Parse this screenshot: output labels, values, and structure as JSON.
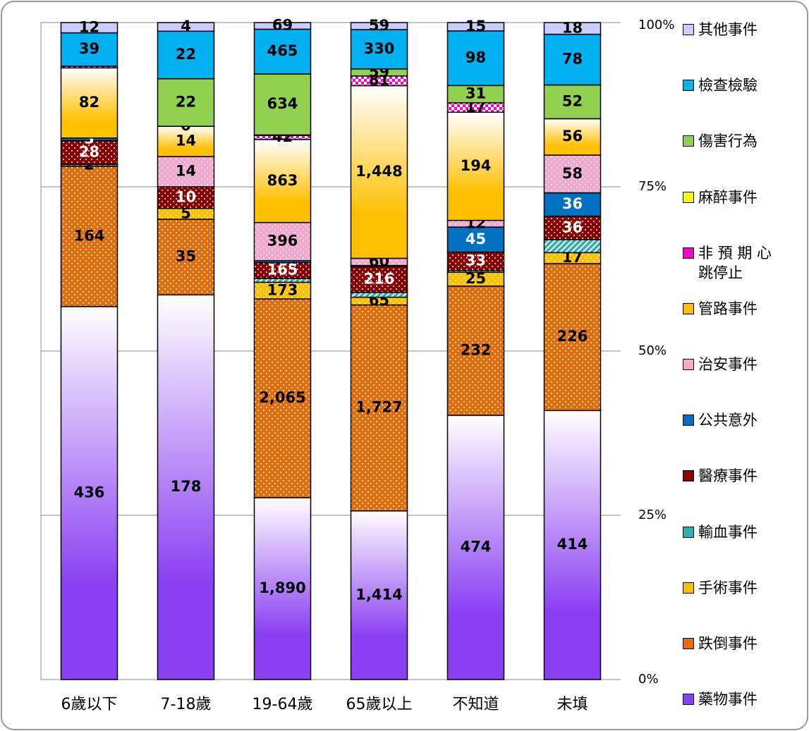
{
  "chart_data": {
    "type": "bar",
    "stack": "percent",
    "categories": [
      "6歲以下",
      "7-18歲",
      "19-64歲",
      "65歲以上",
      "不知道",
      "未填"
    ],
    "ylim": [
      0,
      100
    ],
    "yticks": [
      {
        "value": 0,
        "label": "0%"
      },
      {
        "value": 25,
        "label": "25%"
      },
      {
        "value": 50,
        "label": "50%"
      },
      {
        "value": 75,
        "label": "75%"
      },
      {
        "value": 100,
        "label": "100%"
      }
    ],
    "grid": true,
    "legend": "right",
    "series": [
      {
        "name": "藥物事件",
        "color": "#8a3ff2",
        "pattern": "gradient",
        "label_color": "#000",
        "values": [
          436,
          178,
          1890,
          1414,
          474,
          414
        ],
        "value_labels": [
          "436",
          "178",
          "1,890",
          "1,414",
          "474",
          "414"
        ]
      },
      {
        "name": "跌倒事件",
        "color": "#e46c0a",
        "pattern": "dots",
        "label_color": "#000",
        "values": [
          164,
          35,
          2065,
          1727,
          232,
          226
        ],
        "value_labels": [
          "164",
          "35",
          "2,065",
          "1,727",
          "232",
          "226"
        ]
      },
      {
        "name": "手術事件",
        "color": "#ffc000",
        "pattern": "dots",
        "label_color": "#000",
        "values": [
          null,
          5,
          173,
          65,
          25,
          17
        ],
        "value_labels": [
          null,
          "5",
          "173",
          "65",
          "25",
          "17"
        ]
      },
      {
        "name": "輸血事件",
        "color": "#31b0b0",
        "pattern": "hatch",
        "label_color": "#000",
        "values": [
          2,
          null,
          40,
          40,
          3,
          20
        ],
        "value_labels": [
          "2",
          null,
          null,
          null,
          null,
          null
        ]
      },
      {
        "name": "醫療事件",
        "color": "#8b0000",
        "pattern": "dots",
        "label_color": "#fff",
        "values": [
          28,
          10,
          165,
          216,
          33,
          36
        ],
        "value_labels": [
          "28",
          "10",
          "165",
          "216",
          "33",
          "36"
        ]
      },
      {
        "name": "公共意外",
        "color": "#0070c0",
        "label_color": "#fff",
        "values": [
          3,
          null,
          20,
          10,
          45,
          36
        ],
        "value_labels": [
          "3",
          null,
          null,
          null,
          "45",
          "36"
        ]
      },
      {
        "name": "治安事件",
        "color": "#f7a8cc",
        "pattern": "dots",
        "label_color": "#000",
        "values": [
          null,
          14,
          396,
          60,
          12,
          58
        ],
        "value_labels": [
          null,
          "14",
          "396",
          "60",
          "12",
          "58"
        ]
      },
      {
        "name": "管路事件",
        "color": "#ffc000",
        "pattern": "gradient",
        "label_color": "#000",
        "values": [
          82,
          14,
          863,
          1448,
          194,
          56
        ],
        "value_labels": [
          "82",
          "14",
          "863",
          "1,448",
          "194",
          "56"
        ]
      },
      {
        "name": "非 預 期 心跳停止",
        "color": "#ff00cc",
        "pattern": "checker",
        "label_color": "#000",
        "values": [
          2,
          null,
          42,
          81,
          17,
          null
        ],
        "value_labels": [
          null,
          null,
          "42",
          "81",
          "17",
          null
        ]
      },
      {
        "name": "麻醉事件",
        "color": "#ffff00",
        "label_color": "#000",
        "values": [
          null,
          0,
          5,
          null,
          null,
          null
        ],
        "value_labels": [
          null,
          "0",
          null,
          null,
          null,
          null
        ]
      },
      {
        "name": "傷害行為",
        "color": "#92d050",
        "label_color": "#000",
        "values": [
          null,
          22,
          634,
          59,
          31,
          52
        ],
        "value_labels": [
          null,
          "22",
          "634",
          "59",
          "31",
          "52"
        ]
      },
      {
        "name": "檢查檢驗",
        "color": "#00b0f0",
        "label_color": "#000",
        "values": [
          39,
          22,
          465,
          330,
          98,
          78
        ],
        "value_labels": [
          "39",
          "22",
          "465",
          "330",
          "98",
          "78"
        ]
      },
      {
        "name": "其他事件",
        "color": "#ccccff",
        "label_color": "#000",
        "values": [
          12,
          4,
          69,
          59,
          15,
          18
        ],
        "value_labels": [
          "12",
          "4",
          "69",
          "59",
          "15",
          "18"
        ]
      }
    ]
  }
}
